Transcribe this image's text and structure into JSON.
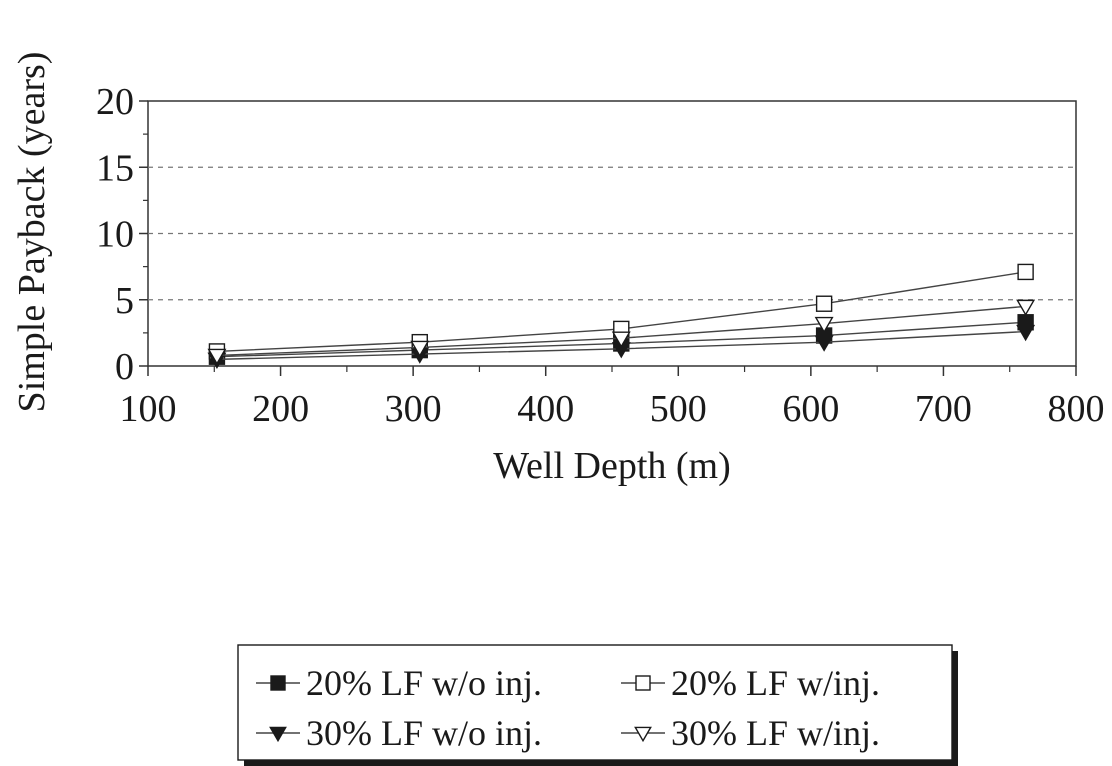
{
  "chart_data": {
    "type": "line",
    "title": "",
    "xlabel": "Well Depth (m)",
    "ylabel": "Simple Payback (years)",
    "xlim": [
      100,
      800
    ],
    "ylim": [
      0,
      20
    ],
    "x_ticks": [
      100,
      200,
      300,
      400,
      500,
      600,
      700,
      800
    ],
    "y_ticks": [
      0,
      5,
      10,
      15,
      20
    ],
    "grid": "horizontal-dashed",
    "legend_placement": "bottom",
    "x": [
      152,
      305,
      457,
      610,
      762
    ],
    "series": [
      {
        "name": "20% LF w/o inj.",
        "marker": "filled-square",
        "values": [
          0.7,
          1.2,
          1.7,
          2.3,
          3.3
        ]
      },
      {
        "name": "20% LF w/inj.",
        "marker": "open-square",
        "values": [
          1.1,
          1.8,
          2.8,
          4.7,
          7.1
        ]
      },
      {
        "name": "30% LF w/o inj.",
        "marker": "filled-triangle-down",
        "values": [
          0.5,
          0.9,
          1.3,
          1.8,
          2.6
        ]
      },
      {
        "name": "30% LF w/inj.",
        "marker": "open-triangle-down",
        "values": [
          0.8,
          1.4,
          2.1,
          3.2,
          4.5
        ]
      }
    ]
  }
}
